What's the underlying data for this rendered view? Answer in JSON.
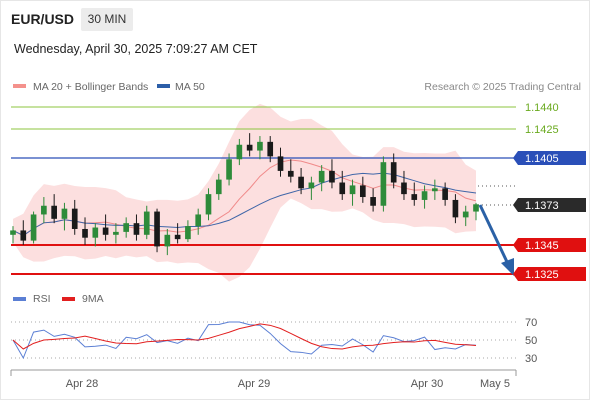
{
  "header": {
    "symbol": "EUR/USD",
    "timeframe": "30 MIN",
    "datetime": "Wednesday, April 30, 2025 7:09:27 AM CET"
  },
  "legend": {
    "items": [
      {
        "label": "MA 20 + Bollinger Bands",
        "color": "#f4918c"
      },
      {
        "label": "MA 50",
        "color": "#2c5ea8"
      }
    ],
    "credit": "Research © 2025 Trading Central"
  },
  "colors": {
    "bull": "#2e8b3a",
    "bear": "#1a1a1a",
    "band": "#fcdcdc",
    "ma20": "#f08a8a",
    "ma50": "#3f66a8",
    "green_level": "#8cc63f",
    "blue_level": "#2a4fb8",
    "red_level": "#e01010",
    "arrow": "#2b61a6",
    "rsi": "#5b7fd4",
    "rsi_ma": "#e21f1f"
  },
  "levels": [
    {
      "value": "1.1440",
      "kind": "resistance-green"
    },
    {
      "value": "1.1425",
      "kind": "resistance-green"
    },
    {
      "value": "1.1405",
      "kind": "pivot-blue"
    },
    {
      "value": "1.1373",
      "kind": "last-price"
    },
    {
      "value": "1.1345",
      "kind": "target-red"
    },
    {
      "value": "1.1325",
      "kind": "target-red"
    }
  ],
  "xaxis": {
    "labels": [
      "Apr 28",
      "Apr 29",
      "Apr 30",
      "May 5"
    ]
  },
  "rsi_panel": {
    "legend": [
      {
        "label": "RSI",
        "color": "#5b7fd4"
      },
      {
        "label": "9MA",
        "color": "#e21f1f"
      }
    ],
    "ticks": [
      "70",
      "50",
      "30"
    ]
  },
  "chart_data": {
    "type": "candlestick",
    "symbol": "EUR/USD",
    "interval": "30 MIN",
    "ylim": [
      1.132,
      1.145
    ],
    "last_price": 1.1373,
    "forecast": {
      "from": 1.1373,
      "to": 1.1325,
      "direction": "down"
    },
    "candles_approx": [
      {
        "o": 1.1352,
        "h": 1.1358,
        "l": 1.1346,
        "c": 1.1355
      },
      {
        "o": 1.1355,
        "h": 1.1362,
        "l": 1.1345,
        "c": 1.1348
      },
      {
        "o": 1.1348,
        "h": 1.1368,
        "l": 1.1346,
        "c": 1.1366
      },
      {
        "o": 1.1366,
        "h": 1.1378,
        "l": 1.136,
        "c": 1.1372
      },
      {
        "o": 1.1372,
        "h": 1.138,
        "l": 1.136,
        "c": 1.1363
      },
      {
        "o": 1.1363,
        "h": 1.1374,
        "l": 1.1355,
        "c": 1.137
      },
      {
        "o": 1.137,
        "h": 1.1376,
        "l": 1.1352,
        "c": 1.1356
      },
      {
        "o": 1.1356,
        "h": 1.1364,
        "l": 1.1345,
        "c": 1.135
      },
      {
        "o": 1.135,
        "h": 1.136,
        "l": 1.1344,
        "c": 1.1357
      },
      {
        "o": 1.1357,
        "h": 1.1366,
        "l": 1.1348,
        "c": 1.1352
      },
      {
        "o": 1.1352,
        "h": 1.136,
        "l": 1.1346,
        "c": 1.1354
      },
      {
        "o": 1.1354,
        "h": 1.1364,
        "l": 1.135,
        "c": 1.136
      },
      {
        "o": 1.136,
        "h": 1.1366,
        "l": 1.1348,
        "c": 1.1352
      },
      {
        "o": 1.1352,
        "h": 1.1372,
        "l": 1.1349,
        "c": 1.1368
      },
      {
        "o": 1.1368,
        "h": 1.137,
        "l": 1.134,
        "c": 1.1344
      },
      {
        "o": 1.1344,
        "h": 1.1356,
        "l": 1.1338,
        "c": 1.1352
      },
      {
        "o": 1.1352,
        "h": 1.136,
        "l": 1.1346,
        "c": 1.1349
      },
      {
        "o": 1.1349,
        "h": 1.1362,
        "l": 1.1347,
        "c": 1.1358
      },
      {
        "o": 1.1358,
        "h": 1.137,
        "l": 1.1352,
        "c": 1.1366
      },
      {
        "o": 1.1366,
        "h": 1.1384,
        "l": 1.1362,
        "c": 1.138
      },
      {
        "o": 1.138,
        "h": 1.1394,
        "l": 1.1376,
        "c": 1.139
      },
      {
        "o": 1.139,
        "h": 1.1408,
        "l": 1.1386,
        "c": 1.1404
      },
      {
        "o": 1.1404,
        "h": 1.1418,
        "l": 1.14,
        "c": 1.1414
      },
      {
        "o": 1.1414,
        "h": 1.1422,
        "l": 1.1406,
        "c": 1.141
      },
      {
        "o": 1.141,
        "h": 1.142,
        "l": 1.1404,
        "c": 1.1416
      },
      {
        "o": 1.1416,
        "h": 1.142,
        "l": 1.1402,
        "c": 1.1406
      },
      {
        "o": 1.1406,
        "h": 1.1412,
        "l": 1.1392,
        "c": 1.1396
      },
      {
        "o": 1.1396,
        "h": 1.1404,
        "l": 1.1388,
        "c": 1.1392
      },
      {
        "o": 1.1392,
        "h": 1.1398,
        "l": 1.138,
        "c": 1.1384
      },
      {
        "o": 1.1384,
        "h": 1.1392,
        "l": 1.1376,
        "c": 1.1388
      },
      {
        "o": 1.1388,
        "h": 1.14,
        "l": 1.1382,
        "c": 1.1396
      },
      {
        "o": 1.1396,
        "h": 1.1404,
        "l": 1.1384,
        "c": 1.1388
      },
      {
        "o": 1.1388,
        "h": 1.1396,
        "l": 1.1376,
        "c": 1.138
      },
      {
        "o": 1.138,
        "h": 1.139,
        "l": 1.1372,
        "c": 1.1386
      },
      {
        "o": 1.1386,
        "h": 1.1392,
        "l": 1.1374,
        "c": 1.1378
      },
      {
        "o": 1.1378,
        "h": 1.1384,
        "l": 1.1368,
        "c": 1.1372
      },
      {
        "o": 1.1372,
        "h": 1.1406,
        "l": 1.1368,
        "c": 1.1402
      },
      {
        "o": 1.1402,
        "h": 1.1408,
        "l": 1.1384,
        "c": 1.1388
      },
      {
        "o": 1.1388,
        "h": 1.1396,
        "l": 1.1376,
        "c": 1.138
      },
      {
        "o": 1.138,
        "h": 1.1388,
        "l": 1.1372,
        "c": 1.1376
      },
      {
        "o": 1.1376,
        "h": 1.1386,
        "l": 1.137,
        "c": 1.1382
      },
      {
        "o": 1.1382,
        "h": 1.139,
        "l": 1.1376,
        "c": 1.1384
      },
      {
        "o": 1.1384,
        "h": 1.1388,
        "l": 1.1372,
        "c": 1.1376
      },
      {
        "o": 1.1376,
        "h": 1.138,
        "l": 1.136,
        "c": 1.1364
      },
      {
        "o": 1.1364,
        "h": 1.1372,
        "l": 1.1358,
        "c": 1.1368
      },
      {
        "o": 1.1368,
        "h": 1.1374,
        "l": 1.1362,
        "c": 1.1373
      }
    ]
  }
}
